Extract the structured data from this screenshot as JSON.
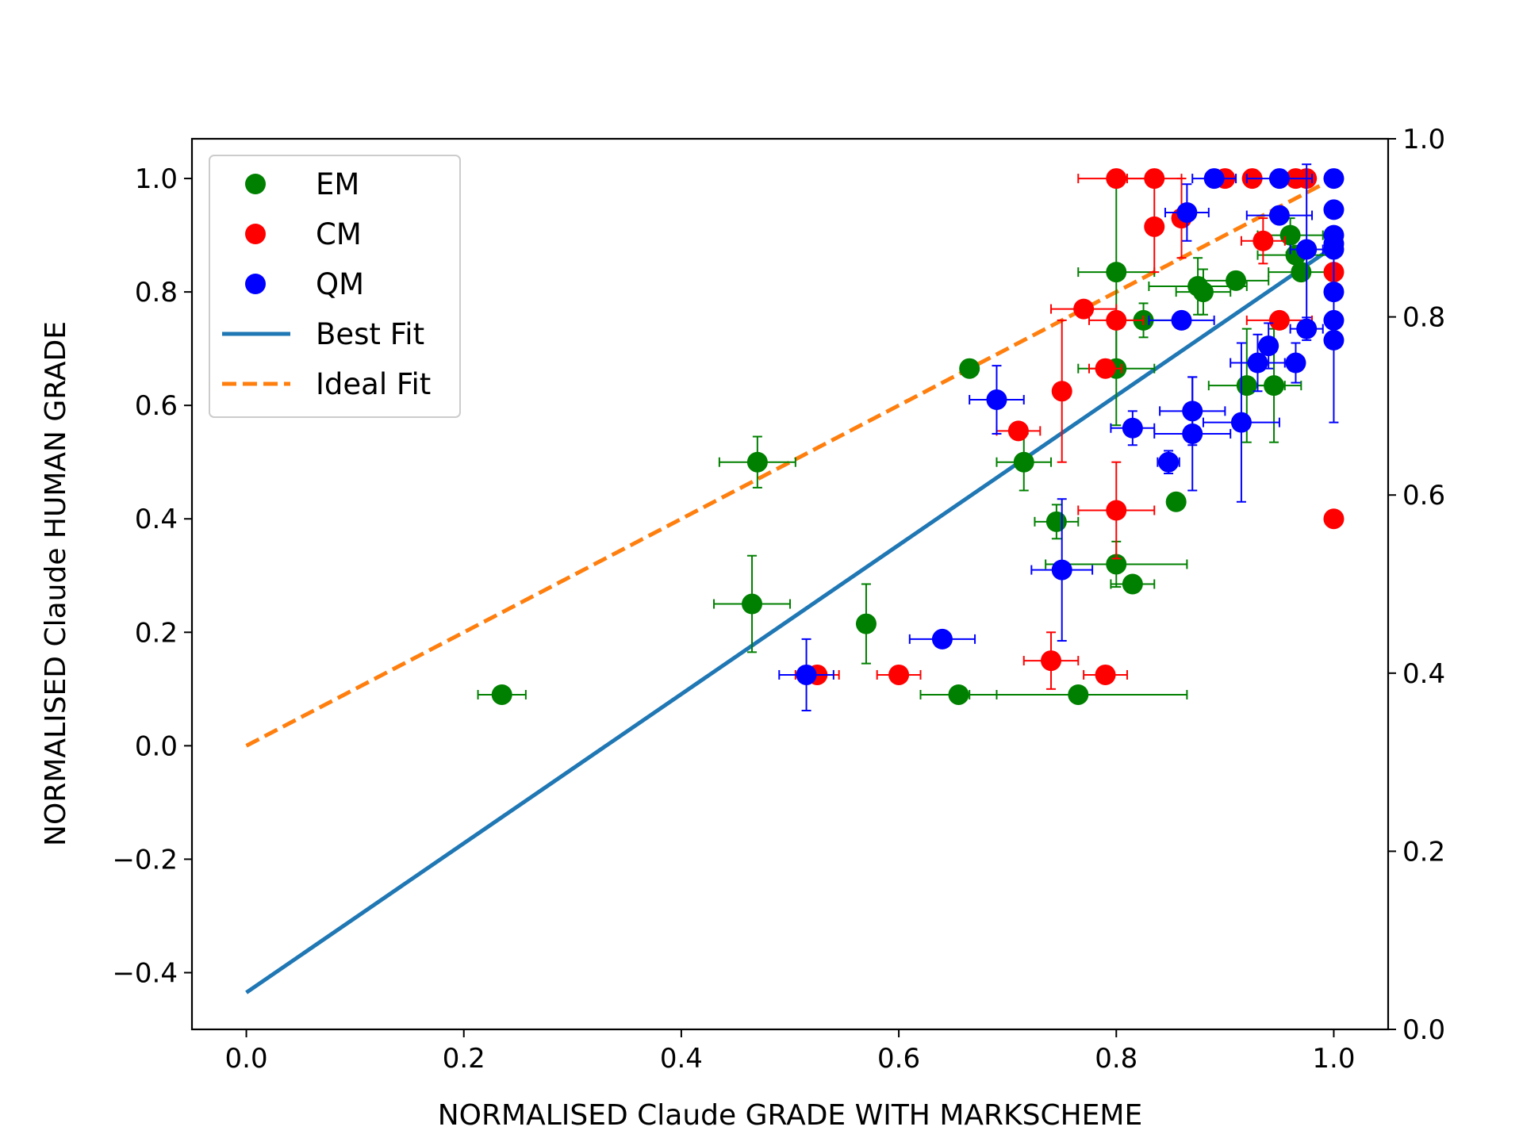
{
  "chart_data": {
    "type": "scatter",
    "xlabel": "NORMALISED Claude GRADE WITH MARKSCHEME",
    "ylabel": "NORMALISED Claude HUMAN GRADE",
    "xlim": [
      -0.05,
      1.05
    ],
    "ylim": [
      -0.5,
      1.07
    ],
    "y2lim": [
      0,
      1
    ],
    "x_ticks": [
      {
        "value": 0.0,
        "label": "0.0"
      },
      {
        "value": 0.2,
        "label": "0.2"
      },
      {
        "value": 0.4,
        "label": "0.4"
      },
      {
        "value": 0.6,
        "label": "0.6"
      },
      {
        "value": 0.8,
        "label": "0.8"
      },
      {
        "value": 1.0,
        "label": "1.0"
      }
    ],
    "y_ticks": [
      {
        "value": -0.4,
        "label": "−0.4"
      },
      {
        "value": -0.2,
        "label": "−0.2"
      },
      {
        "value": 0.0,
        "label": "0.0"
      },
      {
        "value": 0.2,
        "label": "0.2"
      },
      {
        "value": 0.4,
        "label": "0.4"
      },
      {
        "value": 0.6,
        "label": "0.6"
      },
      {
        "value": 0.8,
        "label": "0.8"
      },
      {
        "value": 1.0,
        "label": "1.0"
      }
    ],
    "y2_ticks": [
      {
        "value": 0.0,
        "label": "0.0"
      },
      {
        "value": 0.2,
        "label": "0.2"
      },
      {
        "value": 0.4,
        "label": "0.4"
      },
      {
        "value": 0.6,
        "label": "0.6"
      },
      {
        "value": 0.8,
        "label": "0.8"
      },
      {
        "value": 1.0,
        "label": "1.0"
      }
    ],
    "grid": false,
    "legend_position": "top-left",
    "series": [
      {
        "name": "EM",
        "color": "#008000",
        "points": [
          {
            "x": 0.235,
            "y": 0.09,
            "xerr": 0.022,
            "yerr": 0
          },
          {
            "x": 0.47,
            "y": 0.5,
            "xerr": 0.035,
            "yerr": 0.045
          },
          {
            "x": 0.465,
            "y": 0.25,
            "xerr": 0.035,
            "yerr": 0.085
          },
          {
            "x": 0.57,
            "y": 0.215,
            "xerr": 0,
            "yerr": 0.07
          },
          {
            "x": 0.655,
            "y": 0.09,
            "xerr": 0.035,
            "yerr": 0
          },
          {
            "x": 0.665,
            "y": 0.665,
            "xerr": 0,
            "yerr": 0
          },
          {
            "x": 0.715,
            "y": 0.5,
            "xerr": 0.025,
            "yerr": 0.05
          },
          {
            "x": 0.745,
            "y": 0.395,
            "xerr": 0.02,
            "yerr": 0.03
          },
          {
            "x": 0.765,
            "y": 0.09,
            "xerr": 0.1,
            "yerr": 0
          },
          {
            "x": 0.8,
            "y": 0.835,
            "xerr": 0.035,
            "yerr": 0.16
          },
          {
            "x": 0.8,
            "y": 0.665,
            "xerr": 0.035,
            "yerr": 0.1
          },
          {
            "x": 0.8,
            "y": 0.32,
            "xerr": 0.065,
            "yerr": 0.04
          },
          {
            "x": 0.815,
            "y": 0.285,
            "xerr": 0.02,
            "yerr": 0
          },
          {
            "x": 0.825,
            "y": 0.75,
            "xerr": 0.03,
            "yerr": 0.03
          },
          {
            "x": 0.855,
            "y": 0.43,
            "xerr": 0,
            "yerr": 0
          },
          {
            "x": 0.875,
            "y": 0.81,
            "xerr": 0.045,
            "yerr": 0.05
          },
          {
            "x": 0.88,
            "y": 0.8,
            "xerr": 0.025,
            "yerr": 0.04
          },
          {
            "x": 0.91,
            "y": 0.82,
            "xerr": 0.03,
            "yerr": 0
          },
          {
            "x": 0.92,
            "y": 0.635,
            "xerr": 0.035,
            "yerr": 0.1
          },
          {
            "x": 0.945,
            "y": 0.635,
            "xerr": 0.025,
            "yerr": 0.1
          },
          {
            "x": 0.96,
            "y": 0.9,
            "xerr": 0.03,
            "yerr": 0.03
          },
          {
            "x": 0.965,
            "y": 0.865,
            "xerr": 0.035,
            "yerr": 0
          },
          {
            "x": 0.97,
            "y": 0.835,
            "xerr": 0.03,
            "yerr": 0
          }
        ]
      },
      {
        "name": "CM",
        "color": "#ff0000",
        "points": [
          {
            "x": 0.525,
            "y": 0.125,
            "xerr": 0.02,
            "yerr": 0
          },
          {
            "x": 0.6,
            "y": 0.125,
            "xerr": 0.02,
            "yerr": 0
          },
          {
            "x": 0.71,
            "y": 0.555,
            "xerr": 0.02,
            "yerr": 0
          },
          {
            "x": 0.74,
            "y": 0.15,
            "xerr": 0.025,
            "yerr": 0.05
          },
          {
            "x": 0.75,
            "y": 0.625,
            "xerr": 0,
            "yerr": 0.125
          },
          {
            "x": 0.77,
            "y": 0.77,
            "xerr": 0.03,
            "yerr": 0
          },
          {
            "x": 0.79,
            "y": 0.125,
            "xerr": 0.02,
            "yerr": 0
          },
          {
            "x": 0.79,
            "y": 0.665,
            "xerr": 0.015,
            "yerr": 0
          },
          {
            "x": 0.8,
            "y": 1.0,
            "xerr": 0.035,
            "yerr": 0
          },
          {
            "x": 0.8,
            "y": 0.75,
            "xerr": 0.025,
            "yerr": 0
          },
          {
            "x": 0.8,
            "y": 0.415,
            "xerr": 0.035,
            "yerr": 0.085
          },
          {
            "x": 0.835,
            "y": 1.0,
            "xerr": 0.025,
            "yerr": 0
          },
          {
            "x": 0.835,
            "y": 0.915,
            "xerr": 0,
            "yerr": 0.08
          },
          {
            "x": 0.86,
            "y": 0.93,
            "xerr": 0,
            "yerr": 0.07
          },
          {
            "x": 0.9,
            "y": 1.0,
            "xerr": 0,
            "yerr": 0
          },
          {
            "x": 0.925,
            "y": 1.0,
            "xerr": 0,
            "yerr": 0
          },
          {
            "x": 0.935,
            "y": 0.89,
            "xerr": 0.02,
            "yerr": 0.04
          },
          {
            "x": 0.95,
            "y": 0.75,
            "xerr": 0.03,
            "yerr": 0
          },
          {
            "x": 0.965,
            "y": 1.0,
            "xerr": 0,
            "yerr": 0
          },
          {
            "x": 0.975,
            "y": 1.0,
            "xerr": 0,
            "yerr": 0
          },
          {
            "x": 1.0,
            "y": 0.835,
            "xerr": 0,
            "yerr": 0
          },
          {
            "x": 1.0,
            "y": 0.4,
            "xerr": 0,
            "yerr": 0
          }
        ]
      },
      {
        "name": "QM",
        "color": "#0000ff",
        "points": [
          {
            "x": 0.515,
            "y": 0.125,
            "xerr": 0.025,
            "yerr": 0.063
          },
          {
            "x": 0.64,
            "y": 0.188,
            "xerr": 0.03,
            "yerr": 0
          },
          {
            "x": 0.69,
            "y": 0.61,
            "xerr": 0.025,
            "yerr": 0.06
          },
          {
            "x": 0.75,
            "y": 0.31,
            "xerr": 0.028,
            "yerr": 0.125
          },
          {
            "x": 0.815,
            "y": 0.56,
            "xerr": 0.02,
            "yerr": 0.03
          },
          {
            "x": 0.848,
            "y": 0.5,
            "xerr": 0.01,
            "yerr": 0.02
          },
          {
            "x": 0.86,
            "y": 0.75,
            "xerr": 0.03,
            "yerr": 0
          },
          {
            "x": 0.865,
            "y": 0.94,
            "xerr": 0.02,
            "yerr": 0.05
          },
          {
            "x": 0.87,
            "y": 0.59,
            "xerr": 0.03,
            "yerr": 0.06
          },
          {
            "x": 0.87,
            "y": 0.55,
            "xerr": 0.035,
            "yerr": 0.1
          },
          {
            "x": 0.89,
            "y": 1.0,
            "xerr": 0.02,
            "yerr": 0
          },
          {
            "x": 0.915,
            "y": 0.57,
            "xerr": 0.035,
            "yerr": 0.14
          },
          {
            "x": 0.93,
            "y": 0.675,
            "xerr": 0.025,
            "yerr": 0.05
          },
          {
            "x": 0.94,
            "y": 0.705,
            "xerr": 0,
            "yerr": 0.04
          },
          {
            "x": 0.95,
            "y": 1.0,
            "xerr": 0.03,
            "yerr": 0
          },
          {
            "x": 0.95,
            "y": 0.935,
            "xerr": 0.03,
            "yerr": 0
          },
          {
            "x": 0.965,
            "y": 0.675,
            "xerr": 0,
            "yerr": 0.035
          },
          {
            "x": 0.975,
            "y": 0.875,
            "xerr": 0.015,
            "yerr": 0.15
          },
          {
            "x": 0.975,
            "y": 0.735,
            "xerr": 0.015,
            "yerr": 0.02
          },
          {
            "x": 1.0,
            "y": 1.0,
            "xerr": 0,
            "yerr": 0
          },
          {
            "x": 1.0,
            "y": 0.945,
            "xerr": 0,
            "yerr": 0
          },
          {
            "x": 1.0,
            "y": 0.9,
            "xerr": 0,
            "yerr": 0
          },
          {
            "x": 1.0,
            "y": 0.885,
            "xerr": 0,
            "yerr": 0
          },
          {
            "x": 1.0,
            "y": 0.875,
            "xerr": 0,
            "yerr": 0
          },
          {
            "x": 1.0,
            "y": 0.8,
            "xerr": 0,
            "yerr": 0
          },
          {
            "x": 1.0,
            "y": 0.75,
            "xerr": 0,
            "yerr": 0
          },
          {
            "x": 1.0,
            "y": 0.715,
            "xerr": 0,
            "yerr": 0.145
          }
        ]
      }
    ],
    "lines": [
      {
        "name": "Best Fit",
        "color": "#1f77b4",
        "style": "solid",
        "x": [
          0,
          1
        ],
        "y": [
          -0.435,
          0.88
        ]
      },
      {
        "name": "Ideal Fit",
        "color": "#ff7f0e",
        "style": "dashed",
        "x": [
          0,
          1
        ],
        "y": [
          0,
          1
        ]
      }
    ]
  }
}
